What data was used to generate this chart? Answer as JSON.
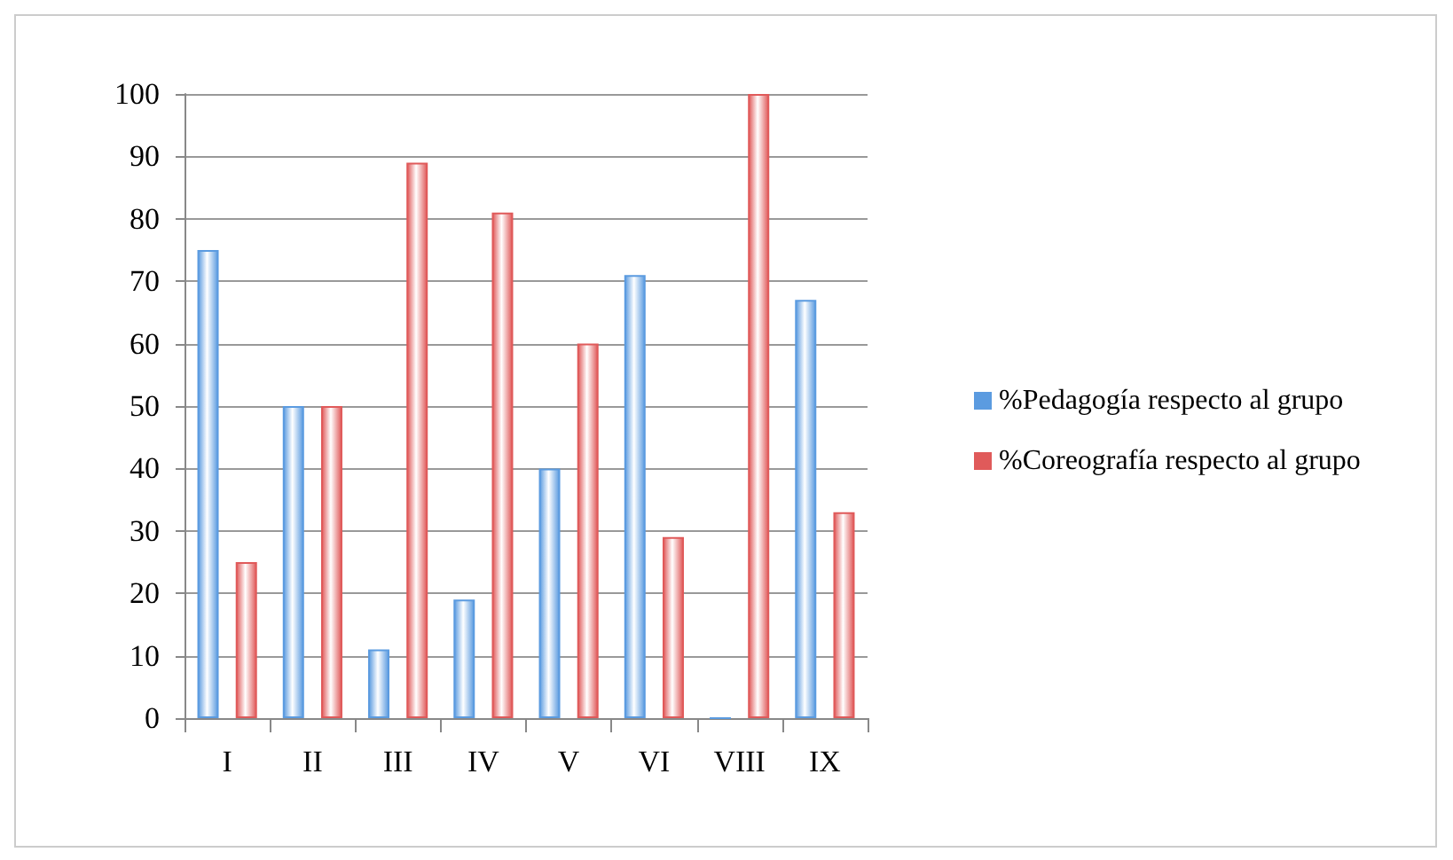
{
  "chart_data": {
    "type": "bar",
    "categories": [
      "I",
      "II",
      "III",
      "IV",
      "V",
      "VI",
      "VIII",
      "IX"
    ],
    "series": [
      {
        "name": "%Pedagogía respecto al grupo",
        "color": "#5b9be0",
        "values": [
          75,
          50,
          11,
          19,
          40,
          71,
          0,
          67
        ]
      },
      {
        "name": "%Coreografía respecto al grupo",
        "color": "#e05a5a",
        "values": [
          25,
          50,
          89,
          81,
          60,
          29,
          100,
          33
        ]
      }
    ],
    "ylim": [
      0,
      100
    ],
    "yticks": [
      0,
      10,
      20,
      30,
      40,
      50,
      60,
      70,
      80,
      90,
      100
    ],
    "grid": "y",
    "legend": "right"
  }
}
